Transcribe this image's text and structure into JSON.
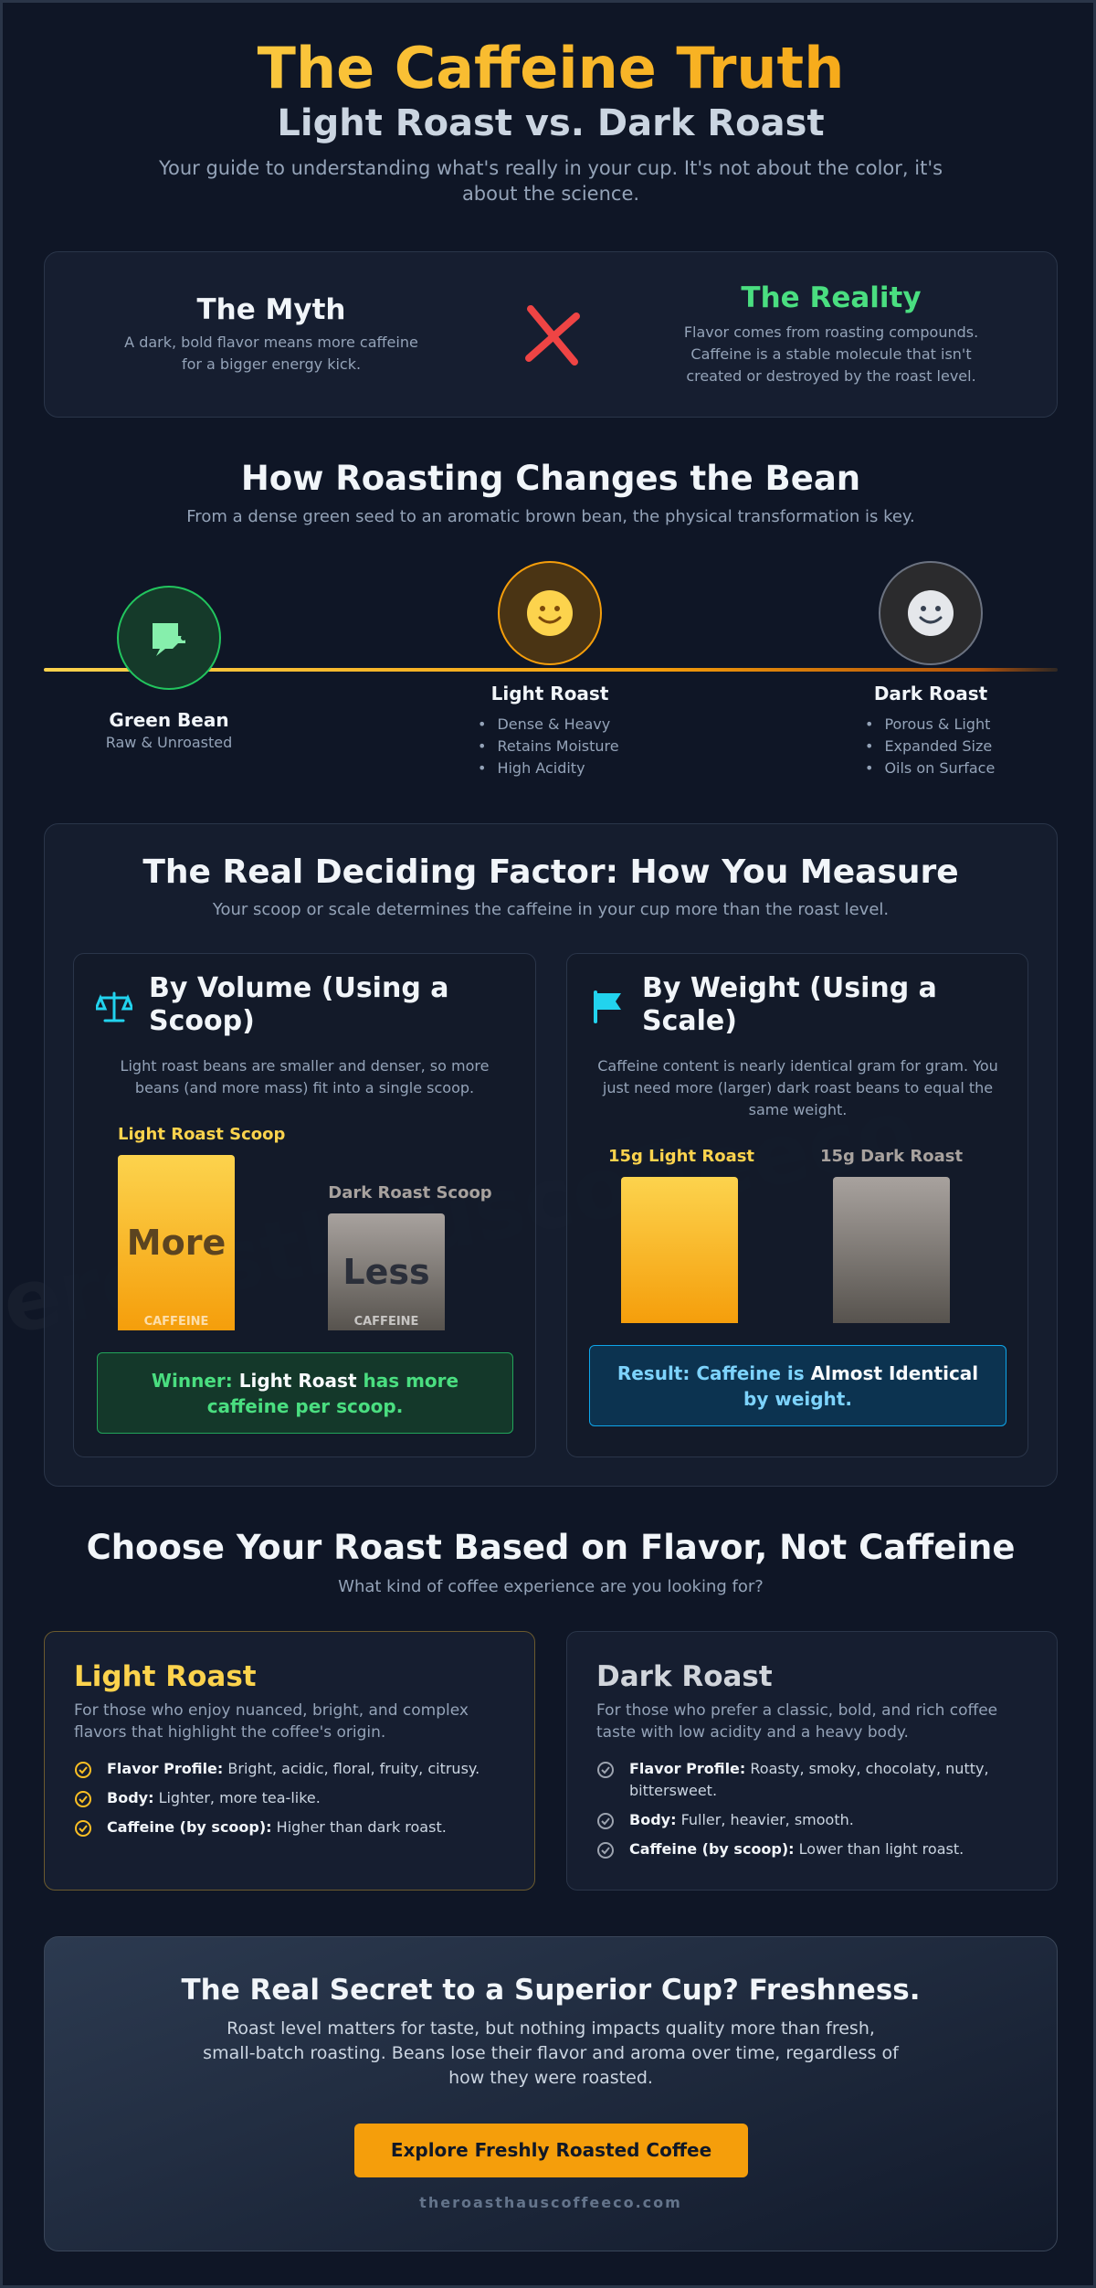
{
  "header": {
    "title": "The Caffeine Truth",
    "subtitle": "Light Roast vs. Dark Roast",
    "intro": "Your guide to understanding what's really in your cup. It's not about the color, it's about the science."
  },
  "myth": {
    "title": "The Myth",
    "text": "A dark, bold flavor means more caffeine for a bigger energy kick."
  },
  "reality": {
    "title": "The Reality",
    "text": "Flavor comes from roasting compounds. Caffeine is a stable molecule that isn't created or destroyed by the roast level."
  },
  "roasting": {
    "title": "How Roasting Changes the Bean",
    "subtitle": "From a dense green seed to an aromatic brown bean, the physical transformation is key.",
    "stages": [
      {
        "name": "Green Bean",
        "desc": "Raw & Unroasted"
      },
      {
        "name": "Light Roast",
        "points": [
          "Dense & Heavy",
          "Retains Moisture",
          "High Acidity"
        ]
      },
      {
        "name": "Dark Roast",
        "points": [
          "Porous & Light",
          "Expanded Size",
          "Oils on Surface"
        ]
      }
    ]
  },
  "measure": {
    "title": "The Real Deciding Factor: How You Measure",
    "subtitle": "Your scoop or scale determines the caffeine in your cup more than the roast level.",
    "volume": {
      "title": "By Volume (Using a Scoop)",
      "text": "Light roast beans are smaller and denser, so more beans (and more mass) fit into a single scoop.",
      "bars": [
        {
          "label": "Light Roast Scoop",
          "text": "More",
          "caption": "CAFFEINE"
        },
        {
          "label": "Dark Roast Scoop",
          "text": "Less",
          "caption": "CAFFEINE"
        }
      ],
      "result": {
        "label": "Winner:",
        "highlight": "Light Roast",
        "rest": "has more caffeine per scoop."
      }
    },
    "weight": {
      "title": "By Weight (Using a Scale)",
      "text": "Caffeine content is nearly identical gram for gram. You just need more (larger) dark roast beans to equal the same weight.",
      "bars": [
        {
          "label": "15g Light Roast"
        },
        {
          "label": "15g Dark Roast"
        }
      ],
      "result": {
        "label": "Result: Caffeine is",
        "highlight": "Almost Identical",
        "rest": "by weight."
      }
    }
  },
  "choose": {
    "title": "Choose Your Roast Based on Flavor, Not Caffeine",
    "subtitle": "What kind of coffee experience are you looking for?",
    "cards": [
      {
        "title": "Light Roast",
        "text": "For those who enjoy nuanced, bright, and complex flavors that highlight the coffee's origin.",
        "items": [
          {
            "label": "Flavor Profile:",
            "text": "Bright, acidic, floral, fruity, citrusy."
          },
          {
            "label": "Body:",
            "text": "Lighter, more tea-like."
          },
          {
            "label": "Caffeine (by scoop):",
            "text": "Higher than dark roast."
          }
        ]
      },
      {
        "title": "Dark Roast",
        "text": "For those who prefer a classic, bold, and rich coffee taste with low acidity and a heavy body.",
        "items": [
          {
            "label": "Flavor Profile:",
            "text": "Roasty, smoky, chocolaty, nutty, bittersweet."
          },
          {
            "label": "Body:",
            "text": "Fuller, heavier, smooth."
          },
          {
            "label": "Caffeine (by scoop):",
            "text": "Lower than light roast."
          }
        ]
      }
    ]
  },
  "freshness": {
    "title": "The Real Secret to a Superior Cup? Freshness.",
    "text": "Roast level matters for taste, but nothing impacts quality more than fresh, small-batch roasting. Beans lose their flavor and aroma over time, regardless of how they were roasted.",
    "button": "Explore Freshly Roasted Coffee",
    "url": "theroasthauscoffeeco.com"
  },
  "watermark": "theroasthauscoffeeco"
}
